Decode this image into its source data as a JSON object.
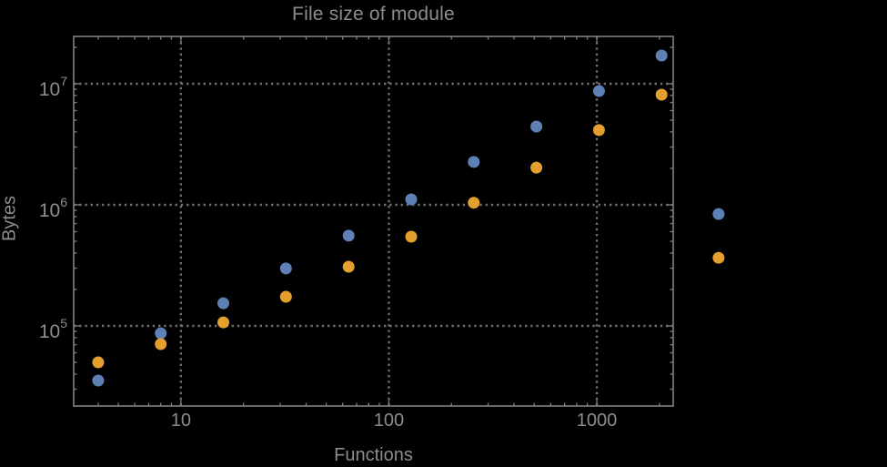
{
  "window": {
    "background": "#000000"
  },
  "chart_data": {
    "type": "scatter",
    "title": "File size of module",
    "xlabel": "Functions",
    "ylabel": "Bytes",
    "xscale": "log",
    "yscale": "log",
    "xlim": [
      3.05,
      2330
    ],
    "ylim": [
      21800,
      24600000
    ],
    "grid": "major-dotted",
    "legend": "none",
    "x_major_ticks": [
      10,
      100,
      1000
    ],
    "x_tick_labels": [
      "10",
      "100",
      "1000"
    ],
    "y_major_ticks": [
      100000,
      1000000,
      10000000
    ],
    "y_tick_labels": [
      {
        "base": "10",
        "exp": "5"
      },
      {
        "base": "10",
        "exp": "6"
      },
      {
        "base": "10",
        "exp": "7"
      }
    ],
    "text_color": "#8d8d8d",
    "frame_color": "#7a7a7a",
    "grid_color": "#6e6e6e",
    "series": [
      {
        "name": "blue",
        "color": "#5e81b5",
        "x": [
          4,
          8,
          16,
          32,
          64,
          128,
          256,
          512,
          1024,
          2048,
          3850
        ],
        "y": [
          35400,
          87000,
          154000,
          298000,
          556000,
          1110000,
          2260000,
          4430000,
          8710000,
          17100000,
          840000
        ]
      },
      {
        "name": "orange",
        "color": "#e3a02f",
        "x": [
          4,
          8,
          16,
          32,
          64,
          128,
          256,
          512,
          1024,
          2048,
          3850
        ],
        "y": [
          50000,
          70700,
          107000,
          174000,
          308000,
          546000,
          1040000,
          2030000,
          4140000,
          8130000,
          365000
        ]
      }
    ]
  }
}
